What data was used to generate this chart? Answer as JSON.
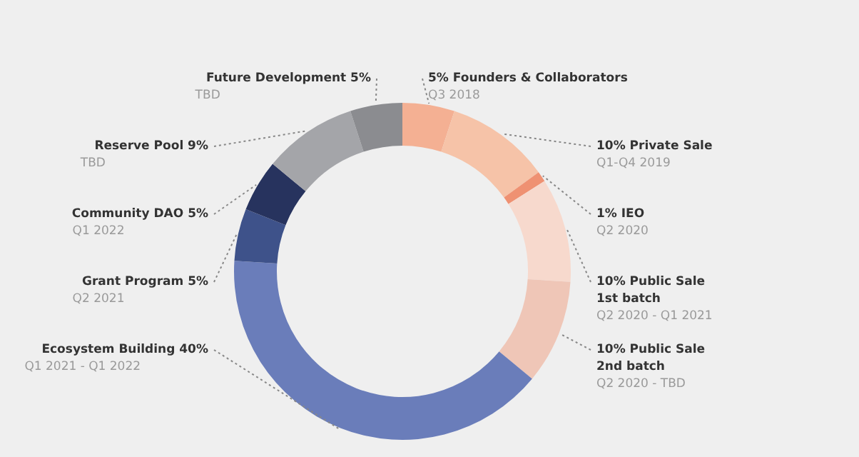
{
  "chart_data": {
    "type": "donut",
    "categories": [
      "Founders & Collaborators",
      "Private Sale",
      "IEO",
      "Public Sale\n1st batch",
      "Public Sale\n2nd batch",
      "Ecosystem Building",
      "Grant Program",
      "Community DAO",
      "Reserve Pool",
      "Future Development"
    ],
    "values": [
      5,
      10,
      1,
      10,
      10,
      40,
      5,
      5,
      9,
      5
    ],
    "value_labels": [
      "5%",
      "10%",
      "1%",
      "10%",
      "10%",
      "40%",
      "5%",
      "5%",
      "9%",
      "5%"
    ],
    "colors": [
      "#f4b093",
      "#f6c3a8",
      "#ef9172",
      "#f7d9cd",
      "#efc6b7",
      "#6a7dba",
      "#3e528a",
      "#27335e",
      "#a4a5a9",
      "#8b8c90"
    ],
    "annotations": [
      {
        "text": "Q3 2018",
        "x": "Founders & Collaborators"
      },
      {
        "text": "Q1-Q4 2019",
        "x": "Private Sale"
      },
      {
        "text": "Q2 2020",
        "x": "IEO"
      },
      {
        "text": "Q2 2020 - Q1 2021",
        "x": "Public Sale\n1st batch"
      },
      {
        "text": "Q2 2020 - TBD",
        "x": "Public Sale\n2nd batch"
      },
      {
        "text": "Q1 2021 - Q1 2022",
        "x": "Ecosystem Building"
      },
      {
        "text": "Q2 2021",
        "x": "Grant Program"
      },
      {
        "text": "Q1 2022",
        "x": "Community DAO"
      },
      {
        "text": "TBD",
        "x": "Reserve Pool"
      },
      {
        "text": "TBD",
        "x": "Future Development"
      }
    ],
    "legend": false
  }
}
